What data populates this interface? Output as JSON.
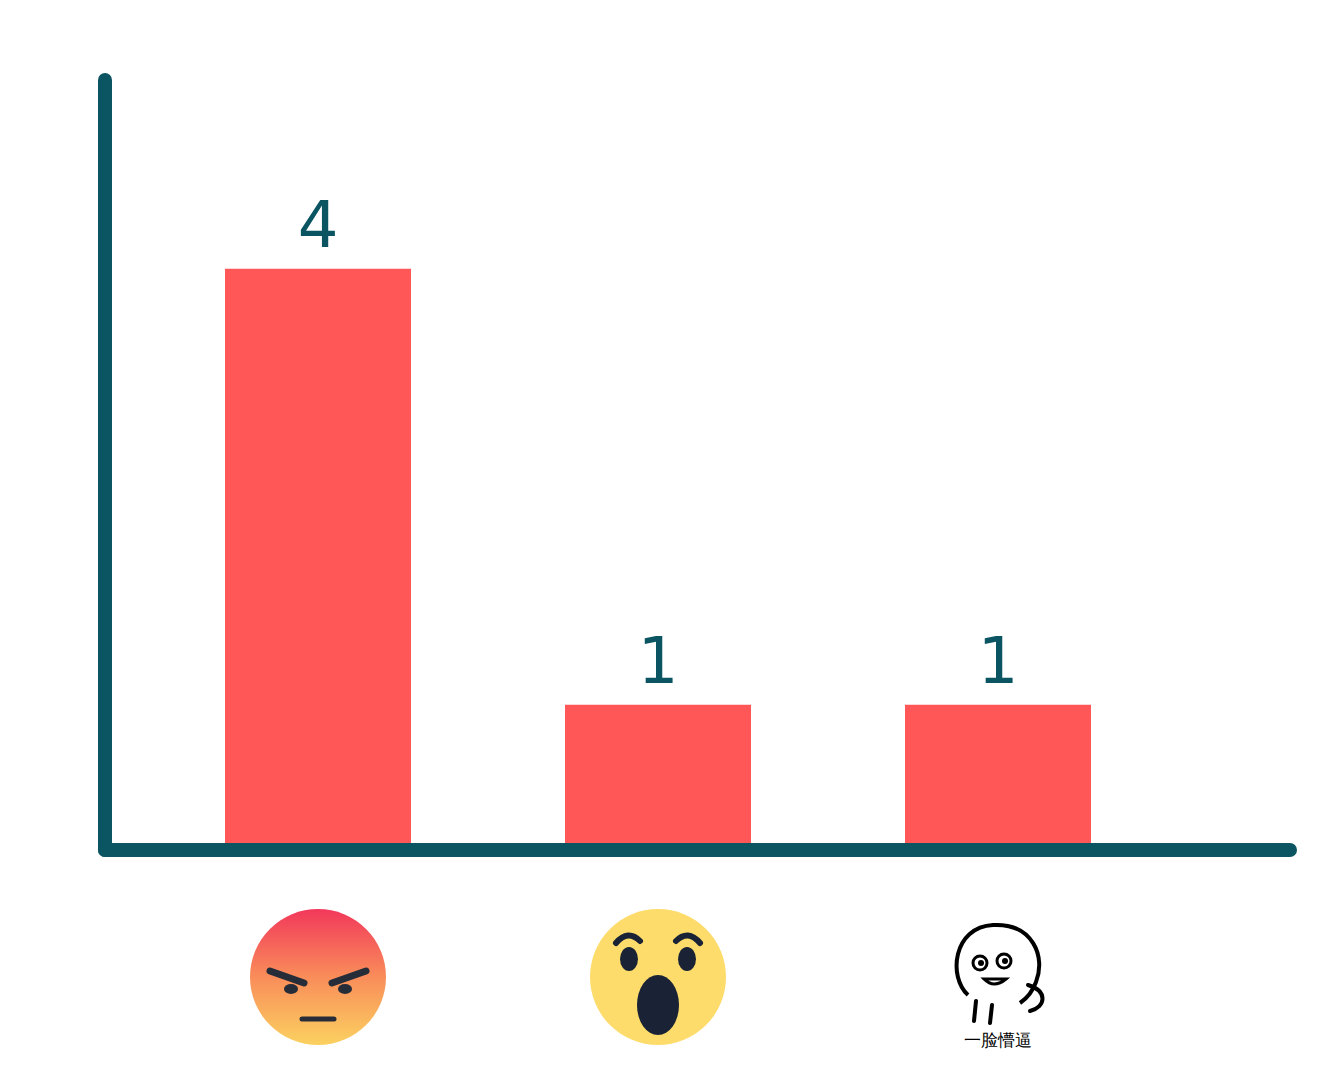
{
  "chart_data": {
    "type": "bar",
    "categories": [
      null,
      null,
      "一脸懵逼"
    ],
    "values": [
      4,
      1,
      1
    ],
    "color": "#ff5757",
    "ylim": [
      0,
      5.3
    ],
    "data_labels": true,
    "tick_labels": "x",
    "grid": false
  }
}
